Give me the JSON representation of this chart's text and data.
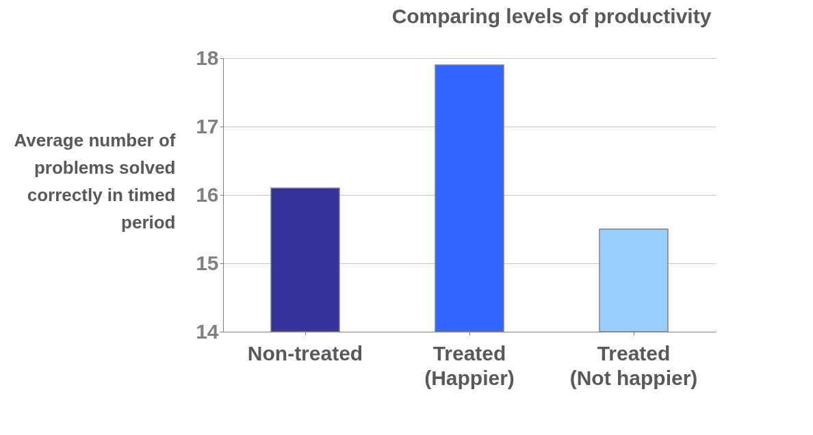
{
  "chart_data": {
    "type": "bar",
    "title": "Comparing levels of productivity",
    "ylabel": "Average number of problems solved correctly in timed period",
    "categories": [
      "Non-treated",
      "Treated (Happier)",
      "Treated (Not happier)"
    ],
    "values": [
      16.1,
      17.9,
      15.5
    ],
    "colors": [
      "#333399",
      "#3366ff",
      "#99ccff"
    ],
    "ylim": [
      14,
      18
    ],
    "yticks": [
      14,
      15,
      16,
      17,
      18
    ],
    "grid": "y"
  }
}
